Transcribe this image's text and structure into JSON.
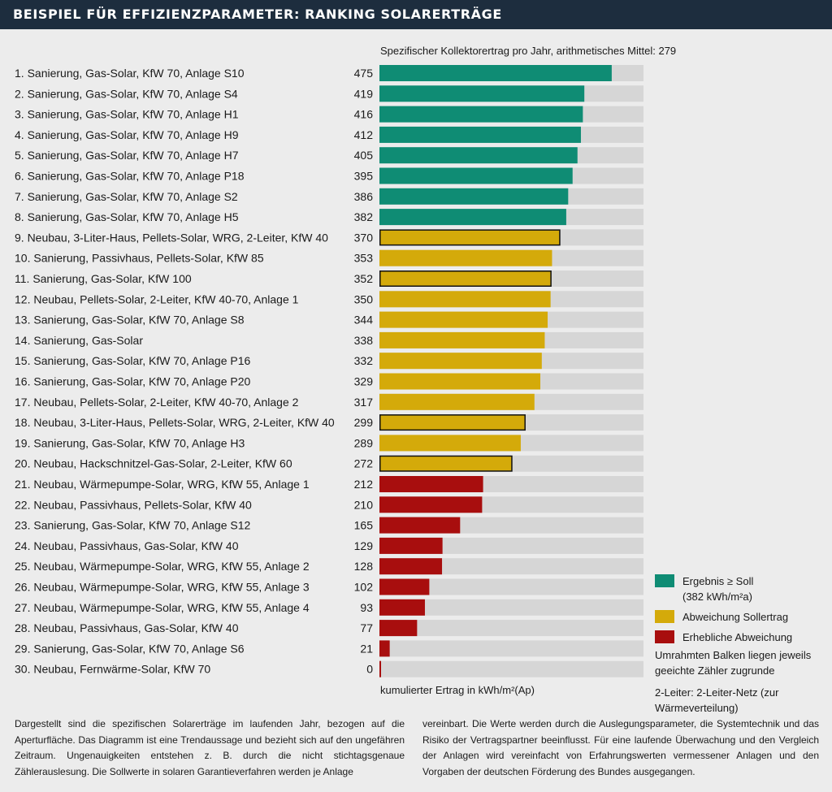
{
  "title": "BEISPIEL FÜR EFFIZIENZPARAMETER: RANKING SOLARERTRÄGE",
  "subtitle": "Spezifischer Kollektorertrag pro Jahr, arithmetisches Mittel: 279",
  "x_label": "kumulierter Ertrag in kWh/m²(Ap)",
  "legend": [
    {
      "label": "Ergebnis ≥ Soll",
      "sublabel": "(382 kWh/m²a)",
      "color": "#0f8c74"
    },
    {
      "label": "Abweichung Sollertrag",
      "color": "#d4aa0a"
    },
    {
      "label": "Erhebliche Abweichung",
      "color": "#a80e0e"
    }
  ],
  "note_framed": "Umrahmten Balken liegen jeweils geeichte Zähler zugrunde",
  "note_2leiter": "2-Leiter: 2-Leiter-Netz (zur Wärmeverteilung)",
  "footer_left": "Dargestellt sind die spezifischen Solarerträge im laufenden Jahr, bezogen auf die Aperturfläche. Das Diagramm ist eine Trendaussage und bezieht sich auf den ungefähren Zeitraum. Ungenauigkeiten entstehen z. B. durch die nicht stichtagsgenaue Zählerauslesung. Die Sollwerte in solaren Garantieverfahren werden je Anlage",
  "footer_right": "vereinbart. Die Werte werden durch die Auslegungsparameter, die Systemtechnik und das Risiko der Vertragspartner beeinflusst. Für eine laufende Überwachung und den Vergleich der Anlagen wird vereinfacht von Erfahrungswerten vermessener Anlagen und den Vorgaben der deutschen Förderung des Bundes ausgegangen.",
  "colors": {
    "green": "#0f8c74",
    "yellow": "#d4aa0a",
    "red": "#a80e0e",
    "track": "#d6d6d6",
    "frame": "#111111"
  },
  "chart_data": {
    "type": "bar",
    "orientation": "horizontal",
    "xlim": [
      0,
      540
    ],
    "categories": [
      "1. Sanierung, Gas-Solar, KfW 70, Anlage S10",
      "2. Sanierung, Gas-Solar, KfW 70, Anlage S4",
      "3. Sanierung, Gas-Solar, KfW 70, Anlage H1",
      "4. Sanierung, Gas-Solar, KfW 70, Anlage H9",
      "5. Sanierung, Gas-Solar, KfW 70, Anlage H7",
      "6. Sanierung, Gas-Solar, KfW 70, Anlage P18",
      "7. Sanierung, Gas-Solar, KfW 70, Anlage S2",
      "8. Sanierung, Gas-Solar, KfW 70, Anlage H5",
      "9. Neubau, 3-Liter-Haus, Pellets-Solar, WRG, 2-Leiter, KfW 40",
      "10. Sanierung, Passivhaus, Pellets-Solar, KfW 85",
      "11. Sanierung, Gas-Solar, KfW 100",
      "12. Neubau, Pellets-Solar, 2-Leiter, KfW 40-70, Anlage 1",
      "13. Sanierung, Gas-Solar, KfW 70, Anlage S8",
      "14. Sanierung, Gas-Solar",
      "15. Sanierung, Gas-Solar, KfW 70, Anlage P16",
      "16. Sanierung, Gas-Solar, KfW 70, Anlage P20",
      "17. Neubau, Pellets-Solar, 2-Leiter, KfW 40-70, Anlage 2",
      "18. Neubau, 3-Liter-Haus, Pellets-Solar, WRG, 2-Leiter, KfW 40",
      "19. Sanierung, Gas-Solar, KfW 70, Anlage H3",
      "20. Neubau, Hackschnitzel-Gas-Solar, 2-Leiter, KfW 60",
      "21. Neubau, Wärmepumpe-Solar, WRG, KfW 55, Anlage 1",
      "22. Neubau, Passivhaus, Pellets-Solar, KfW 40",
      "23. Sanierung, Gas-Solar, KfW 70, Anlage S12",
      "24. Neubau, Passivhaus, Gas-Solar, KfW 40",
      "25. Neubau, Wärmepumpe-Solar, WRG, KfW 55, Anlage 2",
      "26. Neubau, Wärmepumpe-Solar, WRG, KfW 55, Anlage 3",
      "27. Neubau, Wärmepumpe-Solar, WRG, KfW 55, Anlage 4",
      "28. Neubau, Passivhaus, Gas-Solar, KfW 40",
      "29. Sanierung, Gas-Solar, KfW 70, Anlage S6",
      "30. Neubau, Fernwärme-Solar, KfW 70"
    ],
    "values": [
      475,
      419,
      416,
      412,
      405,
      395,
      386,
      382,
      370,
      353,
      352,
      350,
      344,
      338,
      332,
      329,
      317,
      299,
      289,
      272,
      212,
      210,
      165,
      129,
      128,
      102,
      93,
      77,
      21,
      0
    ],
    "category_class": [
      "green",
      "green",
      "green",
      "green",
      "green",
      "green",
      "green",
      "green",
      "yellow",
      "yellow",
      "yellow",
      "yellow",
      "yellow",
      "yellow",
      "yellow",
      "yellow",
      "yellow",
      "yellow",
      "yellow",
      "yellow",
      "red",
      "red",
      "red",
      "red",
      "red",
      "red",
      "red",
      "red",
      "red",
      "red"
    ],
    "framed": [
      false,
      false,
      false,
      false,
      false,
      false,
      false,
      false,
      true,
      false,
      true,
      false,
      false,
      false,
      false,
      false,
      false,
      true,
      false,
      true,
      false,
      false,
      false,
      false,
      false,
      false,
      false,
      false,
      false,
      false
    ]
  }
}
